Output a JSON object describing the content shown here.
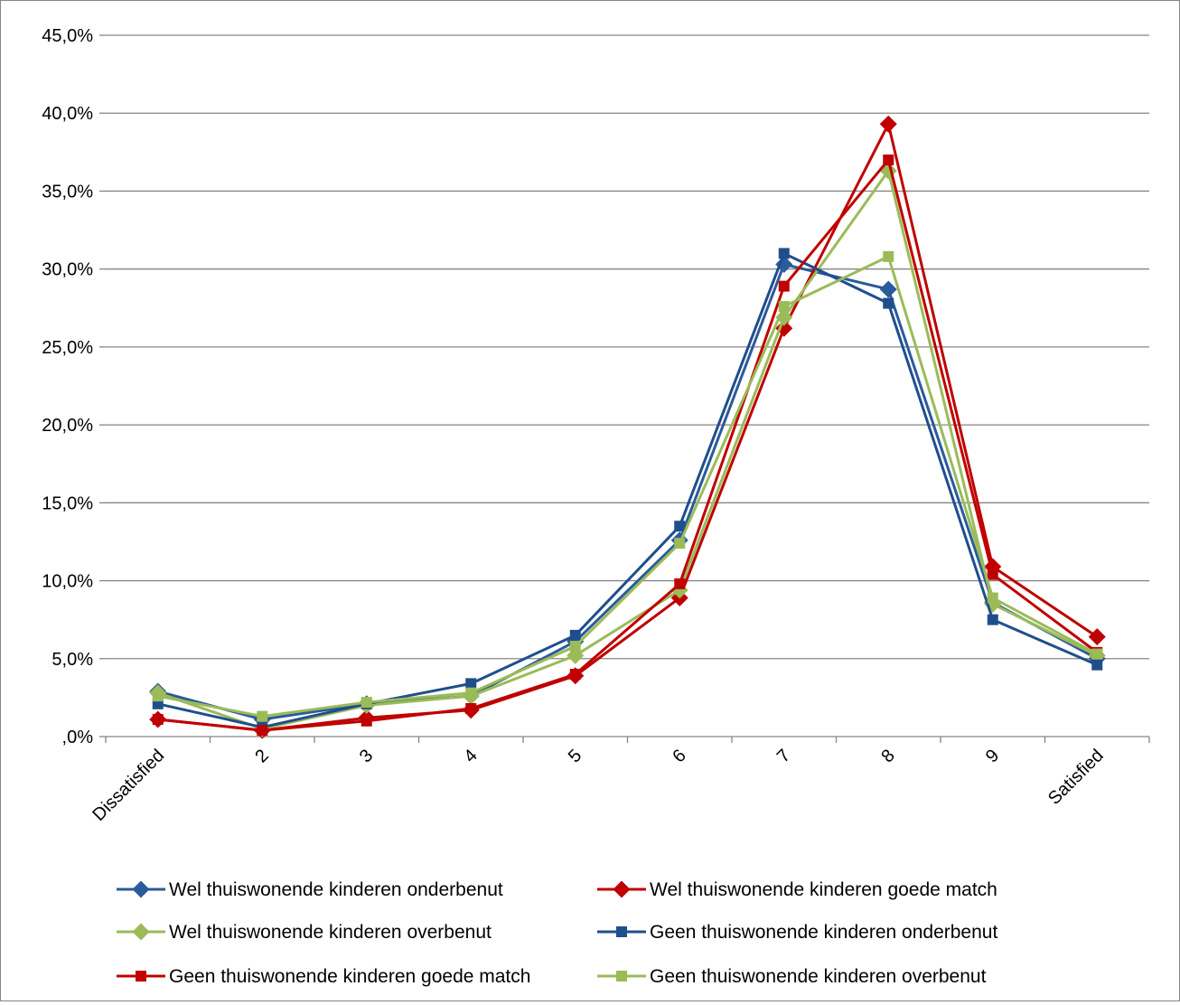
{
  "chart_data": {
    "type": "line",
    "categories": [
      "Dissatisfied",
      "2",
      "3",
      "4",
      "5",
      "6",
      "7",
      "8",
      "9",
      "Satisfied"
    ],
    "y_ticks": [
      "45,0%",
      "40,0%",
      "35,0%",
      "30,0%",
      "25,0%",
      "20,0%",
      "15,0%",
      "10,0%",
      "5,0%",
      ",0%"
    ],
    "ylim": [
      0,
      45
    ],
    "grid": true,
    "legend_position": "bottom",
    "series": [
      {
        "name": "Wel thuiswonende kinderen onderbenut",
        "color": "#2a5b9b",
        "marker": "diamond",
        "values": [
          2.9,
          1.1,
          2.1,
          2.6,
          6.1,
          12.6,
          30.3,
          28.7,
          8.6,
          5.0
        ]
      },
      {
        "name": "Wel thuiswonende kinderen goede match",
        "color": "#c00000",
        "marker": "diamond",
        "values": [
          1.1,
          0.4,
          1.2,
          1.7,
          3.9,
          8.9,
          26.2,
          39.3,
          10.9,
          6.4
        ]
      },
      {
        "name": "Wel thuiswonende kinderen overbenut",
        "color": "#9bbb59",
        "marker": "diamond",
        "values": [
          2.8,
          0.5,
          2.0,
          2.6,
          5.2,
          9.4,
          26.9,
          36.3,
          8.5,
          5.2
        ]
      },
      {
        "name": "Geen thuiswonende kinderen onderbenut",
        "color": "#1f4e8c",
        "marker": "square",
        "values": [
          2.1,
          0.6,
          2.1,
          3.4,
          6.5,
          13.5,
          31.0,
          27.8,
          7.5,
          4.6
        ]
      },
      {
        "name": "Geen thuiswonende kinderen goede match",
        "color": "#c00000",
        "marker": "square",
        "values": [
          1.1,
          0.4,
          1.0,
          1.8,
          4.0,
          9.8,
          28.9,
          37.0,
          10.4,
          5.4
        ]
      },
      {
        "name": "Geen thuiswonende kinderen overbenut",
        "color": "#9bbb59",
        "marker": "square",
        "values": [
          2.6,
          1.3,
          2.2,
          2.8,
          5.8,
          12.4,
          27.6,
          30.8,
          8.9,
          5.3
        ]
      }
    ]
  }
}
